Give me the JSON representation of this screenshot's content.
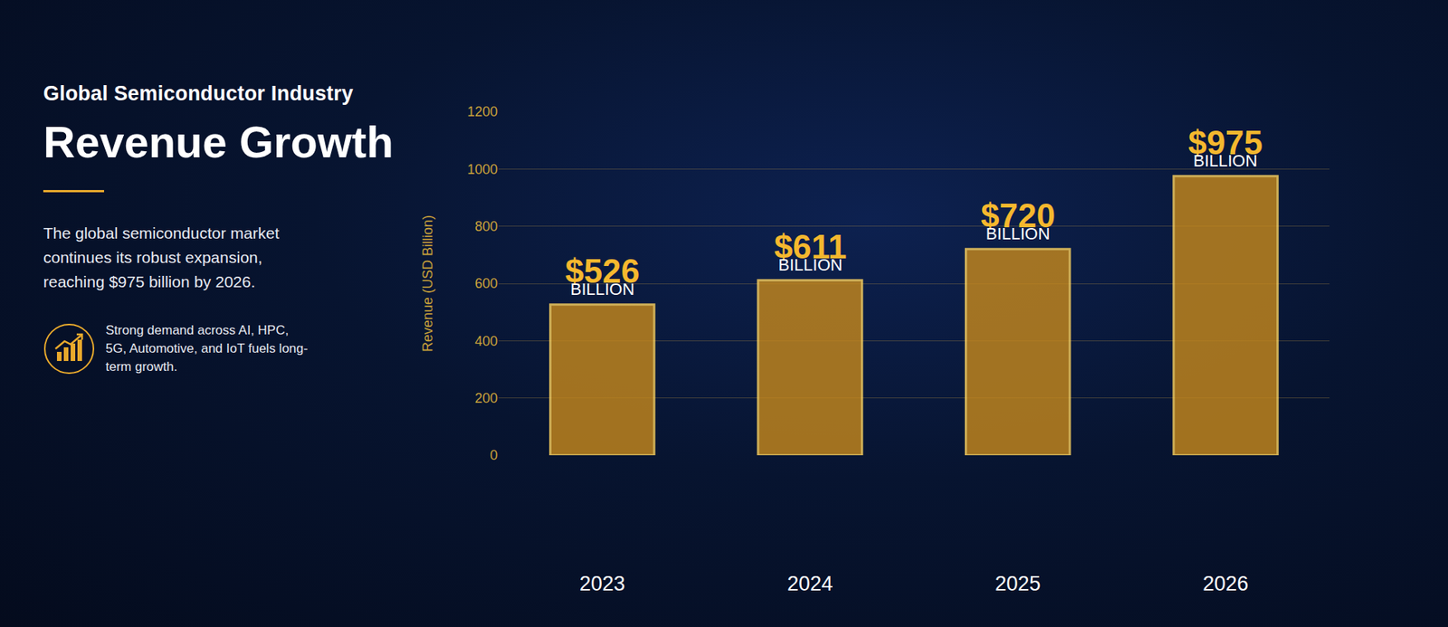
{
  "chart_data": {
    "type": "bar",
    "subtitle": "Global Semiconductor Industry",
    "title": "Revenue Growth",
    "annotations": [
      "The global semiconductor market continues its robust expansion, reaching $975 billion by 2026.",
      "Strong demand across AI, HPC, 5G, Automotive, and IoT fuels long-term growth."
    ],
    "ylabel": "Revenue (USD Billion)",
    "categories": [
      "2023",
      "2024",
      "2025",
      "2026"
    ],
    "values": [
      526,
      611,
      720,
      975
    ],
    "value_labels": [
      "$526 BILLION",
      "$611 BILLION",
      "$720 BILLION",
      "$975 BILLION"
    ],
    "data_labels": true,
    "color": "#c98a1c",
    "ylim": [
      0,
      1200
    ],
    "yticks": [
      0,
      200,
      400,
      600,
      800,
      1000,
      1200
    ],
    "grid": true
  }
}
